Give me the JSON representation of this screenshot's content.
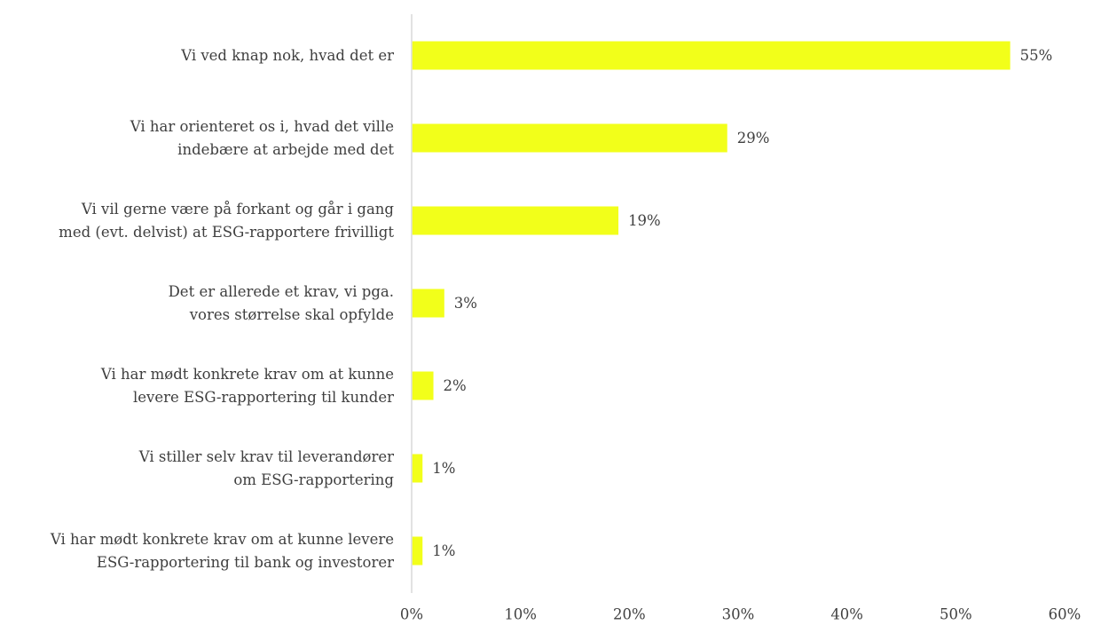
{
  "chart_data": {
    "type": "bar",
    "orientation": "horizontal",
    "categories": [
      "Vi ved knap nok, hvad det er",
      "Vi har orienteret os i, hvad det ville indebære at arbejde med det",
      "Vi vil gerne være på forkant og går i gang med (evt. delvist) at ESG-rapportere frivilligt",
      "Det er allerede et krav, vi pga. vores størrelse skal opfylde",
      "Vi har mødt konkrete krav om at kunne levere ESG-rapportering til kunder",
      "Vi stiller selv krav til leverandører om ESG-rapportering",
      "Vi har mødt konkrete krav om at kunne levere ESG-rapportering til bank og investorer"
    ],
    "category_lines": [
      [
        "Vi ved knap nok, hvad det er"
      ],
      [
        "Vi har orienteret os i, hvad det ville",
        "indebære at arbejde med det"
      ],
      [
        "Vi vil gerne være på forkant og går i gang",
        "med (evt. delvist) at ESG-rapportere frivilligt"
      ],
      [
        "Det er allerede et krav, vi pga.",
        "vores størrelse skal opfylde"
      ],
      [
        "Vi har mødt konkrete krav om at kunne",
        "levere ESG-rapportering til kunder"
      ],
      [
        "Vi stiller selv krav til leverandører",
        "om ESG-rapportering"
      ],
      [
        "Vi har mødt konkrete krav om at kunne levere",
        "ESG-rapportering til bank og investorer"
      ]
    ],
    "values": [
      55,
      29,
      19,
      3,
      2,
      1,
      1
    ],
    "value_labels": [
      "55%",
      "29%",
      "19%",
      "3%",
      "2%",
      "1%",
      "1%"
    ],
    "xlim": [
      0,
      60
    ],
    "x_ticks": [
      0,
      10,
      20,
      30,
      40,
      50,
      60
    ],
    "x_tick_labels": [
      "0%",
      "10%",
      "20%",
      "30%",
      "40%",
      "50%",
      "60%"
    ],
    "grid": false,
    "legend": "none",
    "bar_color": "#f2ff1a",
    "axis_color": "#d9d9d9",
    "text_color": "#3f3f3f",
    "title": "",
    "xlabel": "",
    "ylabel": ""
  }
}
